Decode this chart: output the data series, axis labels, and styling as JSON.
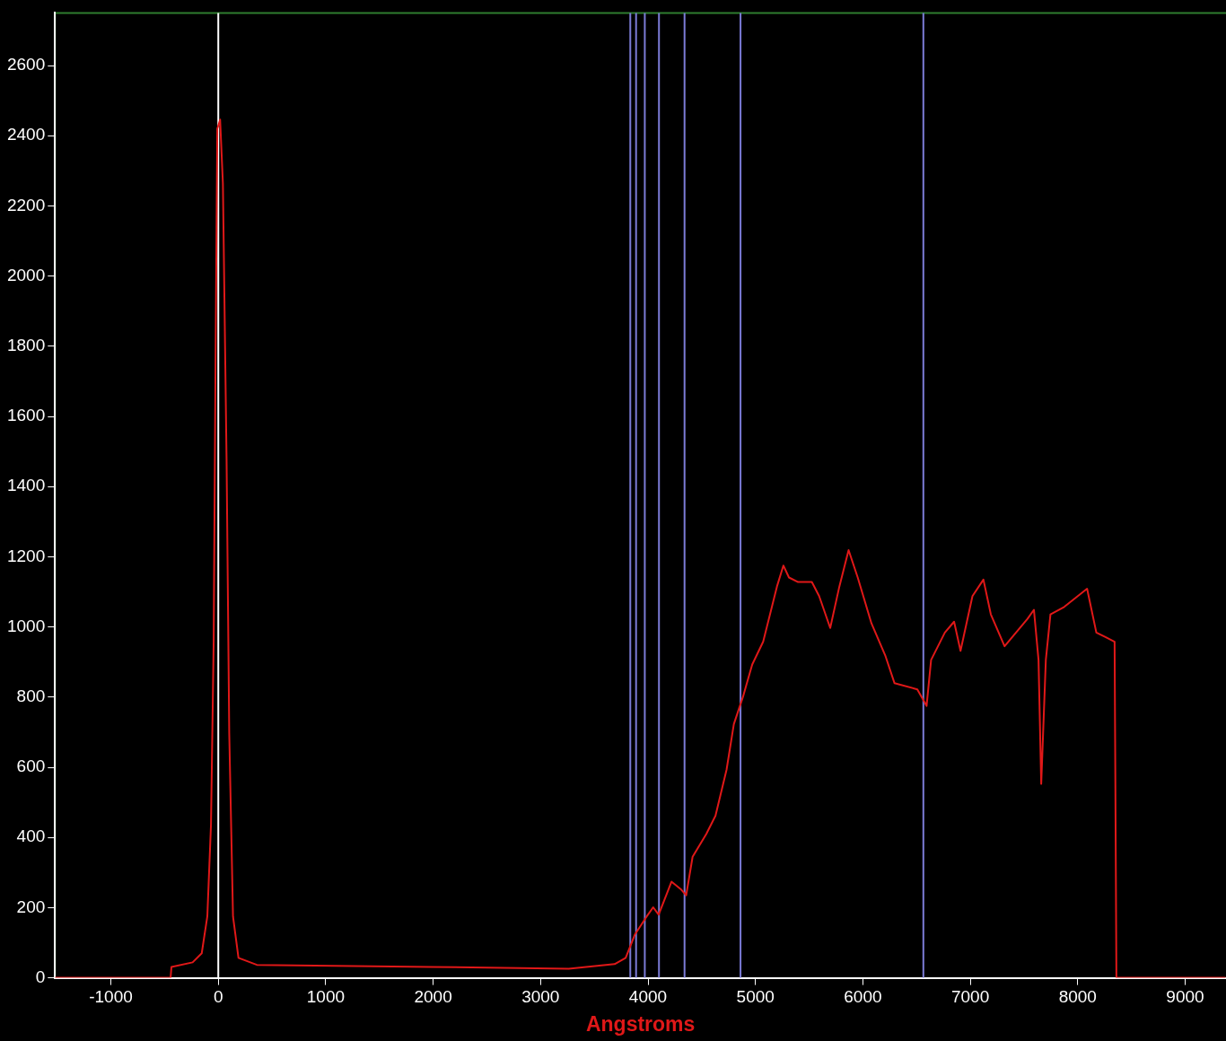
{
  "chart_data": {
    "type": "line",
    "xlabel": "Angstroms",
    "xlim": [
      -1520,
      9380
    ],
    "ylim": [
      0,
      2750
    ],
    "xticks": [
      -1000,
      0,
      1000,
      2000,
      3000,
      4000,
      5000,
      6000,
      7000,
      8000,
      9000
    ],
    "yticks": [
      0,
      200,
      400,
      600,
      800,
      1000,
      1200,
      1400,
      1600,
      1800,
      2000,
      2200,
      2400,
      2600
    ],
    "grid": false,
    "legend": false,
    "marker": "none",
    "line_style": "solid",
    "ref_lines": [
      {
        "axis": "x",
        "value": 0,
        "color": "#ffffff"
      },
      {
        "axis": "x",
        "value": 3835,
        "color": "#7b7bd6"
      },
      {
        "axis": "x",
        "value": 3889,
        "color": "#7b7bd6"
      },
      {
        "axis": "x",
        "value": 3970,
        "color": "#7b7bd6"
      },
      {
        "axis": "x",
        "value": 4102,
        "color": "#7b7bd6"
      },
      {
        "axis": "x",
        "value": 4340,
        "color": "#7b7bd6"
      },
      {
        "axis": "x",
        "value": 4861,
        "color": "#7b7bd6"
      },
      {
        "axis": "x",
        "value": 6563,
        "color": "#7b7bd6"
      }
    ],
    "series": [
      {
        "color": "#e01818",
        "x": [
          -1520,
          -444,
          -436,
          -239,
          -154,
          -102,
          -68,
          -43,
          -26,
          -9,
          17,
          43,
          77,
          102,
          137,
          188,
          359,
          1981,
          3262,
          3689,
          3792,
          3877,
          3988,
          4048,
          4099,
          4219,
          4304,
          4355,
          4415,
          4543,
          4628,
          4731,
          4799,
          4884,
          4970,
          5072,
          5200,
          5260,
          5312,
          5397,
          5525,
          5593,
          5696,
          5781,
          5867,
          5952,
          6080,
          6208,
          6294,
          6507,
          6593,
          6635,
          6763,
          6849,
          6909,
          7020,
          7122,
          7191,
          7319,
          7532,
          7592,
          7635,
          7660,
          7703,
          7746,
          7874,
          8087,
          8173,
          8258,
          8343,
          8360,
          9376
        ],
        "values": [
          0,
          0,
          31,
          44,
          70,
          175,
          436,
          958,
          1741,
          2420,
          2446,
          2263,
          1480,
          697,
          175,
          57,
          37,
          31,
          26,
          39,
          57,
          123,
          175,
          201,
          180,
          274,
          253,
          235,
          345,
          410,
          462,
          593,
          723,
          801,
          893,
          958,
          1115,
          1175,
          1141,
          1128,
          1128,
          1088,
          997,
          1115,
          1219,
          1141,
          1010,
          919,
          840,
          822,
          775,
          906,
          984,
          1015,
          932,
          1088,
          1135,
          1036,
          945,
          1023,
          1049,
          906,
          553,
          906,
          1036,
          1057,
          1109,
          984,
          971,
          958,
          0,
          0
        ]
      }
    ]
  }
}
